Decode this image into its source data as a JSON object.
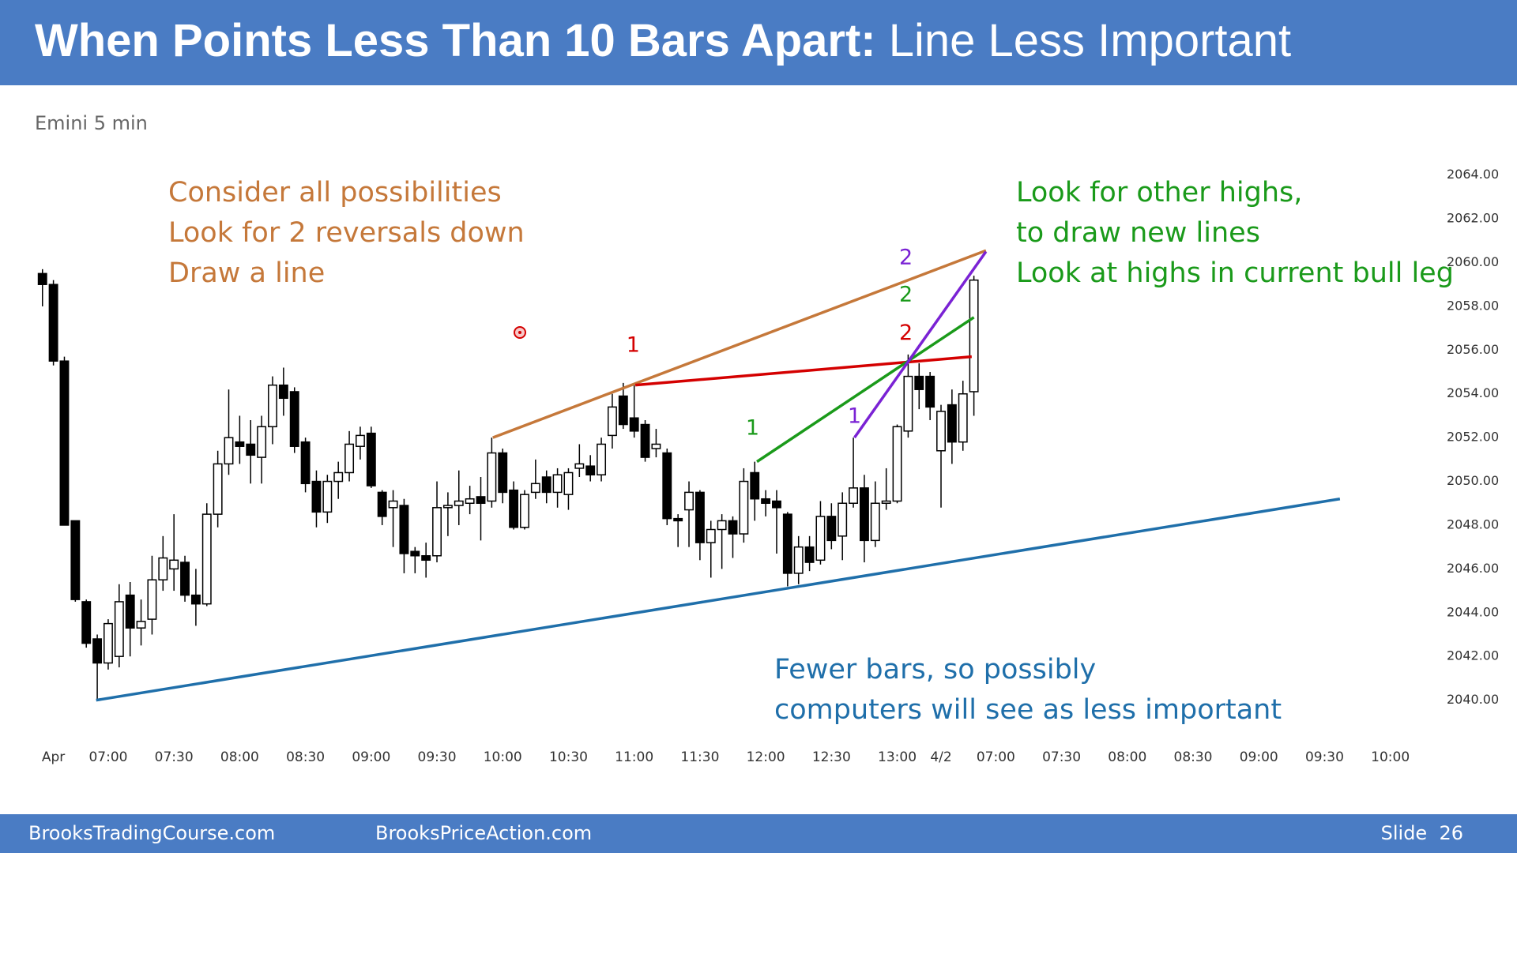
{
  "header": {
    "title_bold": "When Points Less Than 10 Bars Apart:",
    "title_rest": "Line Less Important"
  },
  "subtitle": "Emini 5 min",
  "chart_data": {
    "type": "candlestick",
    "open": [
      2059.5,
      2059.0,
      2055.5,
      2048.2,
      2044.5,
      2042.8,
      2041.7,
      2042.0,
      2044.8,
      2043.3,
      2043.7,
      2045.5,
      2046.0,
      2046.3,
      2044.8,
      2044.4,
      2048.5,
      2050.8,
      2051.8,
      2051.7,
      2051.1,
      2052.5,
      2054.4,
      2054.1,
      2051.8,
      2050.0,
      2048.6,
      2050.0,
      2050.4,
      2051.6,
      2052.2,
      2049.5,
      2048.8,
      2048.9,
      2046.8,
      2046.6,
      2046.6,
      2048.8,
      2048.9,
      2049.0,
      2049.3,
      2049.1,
      2051.3,
      2049.6,
      2047.9,
      2049.5,
      2050.2,
      2049.5,
      2049.4,
      2050.6,
      2050.7,
      2050.3,
      2052.1,
      2053.9,
      2052.9,
      2052.6,
      2051.5,
      2051.3,
      2048.3,
      2048.7,
      2049.5,
      2047.2,
      2047.8,
      2048.2,
      2047.6,
      2050.4,
      2049.2,
      2049.1,
      2048.5,
      2045.8,
      2047.0,
      2046.4,
      2048.4,
      2047.5,
      2049.0,
      2049.7,
      2047.3,
      2049.0,
      2049.1,
      2052.3,
      2054.8,
      2054.8,
      2051.4,
      2053.5,
      2051.8,
      2054.1
    ],
    "high": [
      2059.7,
      2059.2,
      2055.7,
      2048.2,
      2044.6,
      2043.0,
      2043.7,
      2045.3,
      2045.4,
      2044.6,
      2046.6,
      2047.5,
      2048.5,
      2046.6,
      2046.0,
      2049.0,
      2051.4,
      2054.2,
      2053.0,
      2052.8,
      2053.0,
      2054.8,
      2055.2,
      2054.3,
      2052.0,
      2050.5,
      2050.3,
      2050.9,
      2052.3,
      2052.5,
      2052.5,
      2049.6,
      2049.6,
      2049.2,
      2047.0,
      2047.2,
      2050.0,
      2049.5,
      2050.5,
      2049.8,
      2050.2,
      2052.0,
      2051.5,
      2050.0,
      2049.6,
      2051.0,
      2050.5,
      2050.6,
      2050.6,
      2051.7,
      2051.2,
      2052.0,
      2054.0,
      2054.5,
      2054.4,
      2052.8,
      2052.4,
      2051.5,
      2048.5,
      2050.0,
      2049.6,
      2048.2,
      2048.5,
      2048.4,
      2050.6,
      2050.9,
      2049.6,
      2049.6,
      2048.6,
      2047.5,
      2047.5,
      2049.1,
      2049.0,
      2049.5,
      2052.0,
      2050.3,
      2050.0,
      2050.6,
      2052.6,
      2055.8,
      2055.4,
      2055.0,
      2053.5,
      2054.2,
      2054.6,
      2059.4
    ],
    "low": [
      2058.0,
      2055.3,
      2048.0,
      2044.5,
      2042.4,
      2040.0,
      2041.4,
      2041.5,
      2042.0,
      2042.5,
      2043.0,
      2045.0,
      2045.0,
      2044.5,
      2043.4,
      2044.3,
      2047.9,
      2050.3,
      2050.8,
      2049.9,
      2049.9,
      2051.7,
      2053.0,
      2051.3,
      2049.5,
      2047.9,
      2048.1,
      2049.2,
      2050.0,
      2051.0,
      2049.7,
      2048.0,
      2047.0,
      2045.8,
      2045.8,
      2045.6,
      2046.3,
      2047.5,
      2048.0,
      2048.5,
      2047.3,
      2048.8,
      2049.0,
      2047.8,
      2047.8,
      2049.2,
      2049.0,
      2048.8,
      2048.7,
      2050.2,
      2050.0,
      2050.0,
      2051.5,
      2052.4,
      2052.0,
      2050.9,
      2051.1,
      2048.0,
      2047.0,
      2047.0,
      2046.4,
      2045.6,
      2046.0,
      2046.5,
      2047.2,
      2048.2,
      2048.4,
      2046.7,
      2045.2,
      2045.3,
      2045.9,
      2046.2,
      2046.9,
      2046.4,
      2048.8,
      2046.3,
      2047.0,
      2048.7,
      2049.0,
      2052.0,
      2053.3,
      2052.8,
      2048.8,
      2050.8,
      2051.4,
      2053.0
    ],
    "close": [
      2059.0,
      2055.5,
      2048.0,
      2044.6,
      2042.6,
      2041.7,
      2043.5,
      2044.5,
      2043.3,
      2043.6,
      2045.5,
      2046.5,
      2046.4,
      2044.8,
      2044.4,
      2048.5,
      2050.8,
      2052.0,
      2051.6,
      2051.2,
      2052.5,
      2054.4,
      2053.8,
      2051.6,
      2049.9,
      2048.6,
      2050.0,
      2050.4,
      2051.7,
      2052.1,
      2049.8,
      2048.4,
      2049.1,
      2046.7,
      2046.6,
      2046.4,
      2048.8,
      2048.9,
      2049.1,
      2049.2,
      2049.0,
      2051.3,
      2049.5,
      2047.9,
      2049.4,
      2049.9,
      2049.5,
      2050.3,
      2050.4,
      2050.8,
      2050.3,
      2051.7,
      2053.4,
      2052.6,
      2052.3,
      2051.1,
      2051.7,
      2048.3,
      2048.2,
      2049.5,
      2047.2,
      2047.8,
      2048.2,
      2047.6,
      2050.0,
      2049.2,
      2049.0,
      2048.8,
      2045.8,
      2047.0,
      2046.3,
      2048.4,
      2047.3,
      2049.0,
      2049.7,
      2047.3,
      2049.0,
      2049.1,
      2052.5,
      2054.8,
      2054.2,
      2053.4,
      2053.2,
      2051.8,
      2054.0,
      2059.2
    ],
    "up_color": "#ffffff",
    "down_color": "#000000",
    "xlim": [
      -2,
      128
    ],
    "xticks": [
      {
        "value": 1,
        "label": "Apr"
      },
      {
        "value": 6,
        "label": "07:00"
      },
      {
        "value": 12,
        "label": "07:30"
      },
      {
        "value": 18,
        "label": "08:00"
      },
      {
        "value": 24,
        "label": "08:30"
      },
      {
        "value": 30,
        "label": "09:00"
      },
      {
        "value": 36,
        "label": "09:30"
      },
      {
        "value": 42,
        "label": "10:00"
      },
      {
        "value": 48,
        "label": "10:30"
      },
      {
        "value": 54,
        "label": "11:00"
      },
      {
        "value": 60,
        "label": "11:30"
      },
      {
        "value": 66,
        "label": "12:00"
      },
      {
        "value": 72,
        "label": "12:30"
      },
      {
        "value": 78,
        "label": "13:00"
      },
      {
        "value": 82,
        "label": "4/2"
      },
      {
        "value": 87,
        "label": "07:00"
      },
      {
        "value": 93,
        "label": "07:30"
      },
      {
        "value": 99,
        "label": "08:00"
      },
      {
        "value": 105,
        "label": "08:30"
      },
      {
        "value": 111,
        "label": "09:00"
      },
      {
        "value": 117,
        "label": "09:30"
      },
      {
        "value": 123,
        "label": "10:00"
      }
    ],
    "ylim": [
      2038,
      2065
    ],
    "yticks": [
      {
        "value": 2040,
        "label": "2040.00"
      },
      {
        "value": 2042,
        "label": "2042.00"
      },
      {
        "value": 2044,
        "label": "2044.00"
      },
      {
        "value": 2046,
        "label": "2046.00"
      },
      {
        "value": 2048,
        "label": "2048.00"
      },
      {
        "value": 2050,
        "label": "2050.00"
      },
      {
        "value": 2052,
        "label": "2052.00"
      },
      {
        "value": 2054,
        "label": "2054.00"
      },
      {
        "value": 2056,
        "label": "2056.00"
      },
      {
        "value": 2058,
        "label": "2058.00"
      },
      {
        "value": 2060,
        "label": "2060.00"
      },
      {
        "value": 2062,
        "label": "2062.00"
      },
      {
        "value": 2064,
        "label": "2064.00"
      }
    ],
    "trend_lines": [
      {
        "color": "#c5783a",
        "start": [
          41.1,
          2052.0
        ],
        "end": [
          86.1,
          2060.55
        ]
      },
      {
        "color": "#d40000",
        "start": [
          54.1,
          2054.4
        ],
        "end": [
          84.8,
          2055.7
        ]
      },
      {
        "color": "#1a9a1a",
        "start": [
          65.2,
          2050.9
        ],
        "end": [
          85.0,
          2057.5
        ]
      },
      {
        "color": "#7a22d4",
        "start": [
          74.1,
          2052.0
        ],
        "end": [
          86.1,
          2060.5
        ]
      },
      {
        "color": "#1f6faa",
        "start": [
          4.9,
          2040.0
        ],
        "end": [
          118.4,
          2049.2
        ]
      }
    ],
    "point_labels": [
      {
        "text": "1",
        "color": "#d40000",
        "at": [
          53.9,
          2056.2
        ]
      },
      {
        "text": "2",
        "color": "#d40000",
        "at": [
          78.8,
          2056.75
        ]
      },
      {
        "text": "1",
        "color": "#1a9a1a",
        "at": [
          64.8,
          2052.4
        ]
      },
      {
        "text": "2",
        "color": "#1a9a1a",
        "at": [
          78.8,
          2058.5
        ]
      },
      {
        "text": "1",
        "color": "#7a22d4",
        "at": [
          74.1,
          2052.95
        ]
      },
      {
        "text": "2",
        "color": "#7a22d4",
        "at": [
          78.8,
          2060.2
        ]
      }
    ],
    "annotations": [
      {
        "color": "#c5783a",
        "lines": [
          "Consider all possibilities",
          "Look for 2 reversals down",
          "Draw a line"
        ]
      },
      {
        "color": "#1a9a1a",
        "lines": [
          "Look for other highs,",
          "to draw new lines",
          "Look at highs in current bull leg"
        ]
      },
      {
        "color": "#1f6faa",
        "lines": [
          "Fewer bars, so possibly",
          "computers will see as less important"
        ]
      }
    ]
  },
  "footer": {
    "left": "BrooksTradingCourse.com",
    "middle": "BrooksPriceAction.com",
    "slide": "Slide  26"
  }
}
